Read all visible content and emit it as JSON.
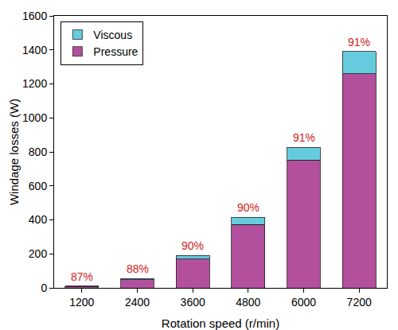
{
  "chart_data": {
    "type": "bar",
    "stacked": true,
    "x_label": "Rotation speed (r/min)",
    "y_label": "Windage losses (W)",
    "categories": [
      "1200",
      "2400",
      "3600",
      "4800",
      "6000",
      "7200"
    ],
    "series": [
      {
        "name": "Pressure",
        "color": "#b2509e",
        "values": [
          8.7,
          48,
          170,
          373,
          752,
          1260
        ]
      },
      {
        "name": "Viscous",
        "color": "#66ccdd",
        "values": [
          1.3,
          7,
          20,
          42,
          76,
          130
        ]
      }
    ],
    "annotations": [
      {
        "x": "1200",
        "text": "87%",
        "color": "#d02020"
      },
      {
        "x": "2400",
        "text": "88%",
        "color": "#d02020"
      },
      {
        "x": "3600",
        "text": "90%",
        "color": "#d02020"
      },
      {
        "x": "4800",
        "text": "90%",
        "color": "#d02020"
      },
      {
        "x": "6000",
        "text": "91%",
        "color": "#d02020"
      },
      {
        "x": "7200",
        "text": "91%",
        "color": "#d02020"
      }
    ],
    "ylim": [
      0,
      1600
    ],
    "yticks": [
      0,
      200,
      400,
      600,
      800,
      1000,
      1200,
      1400,
      1600
    ],
    "grid": false,
    "legend": "upper left"
  }
}
